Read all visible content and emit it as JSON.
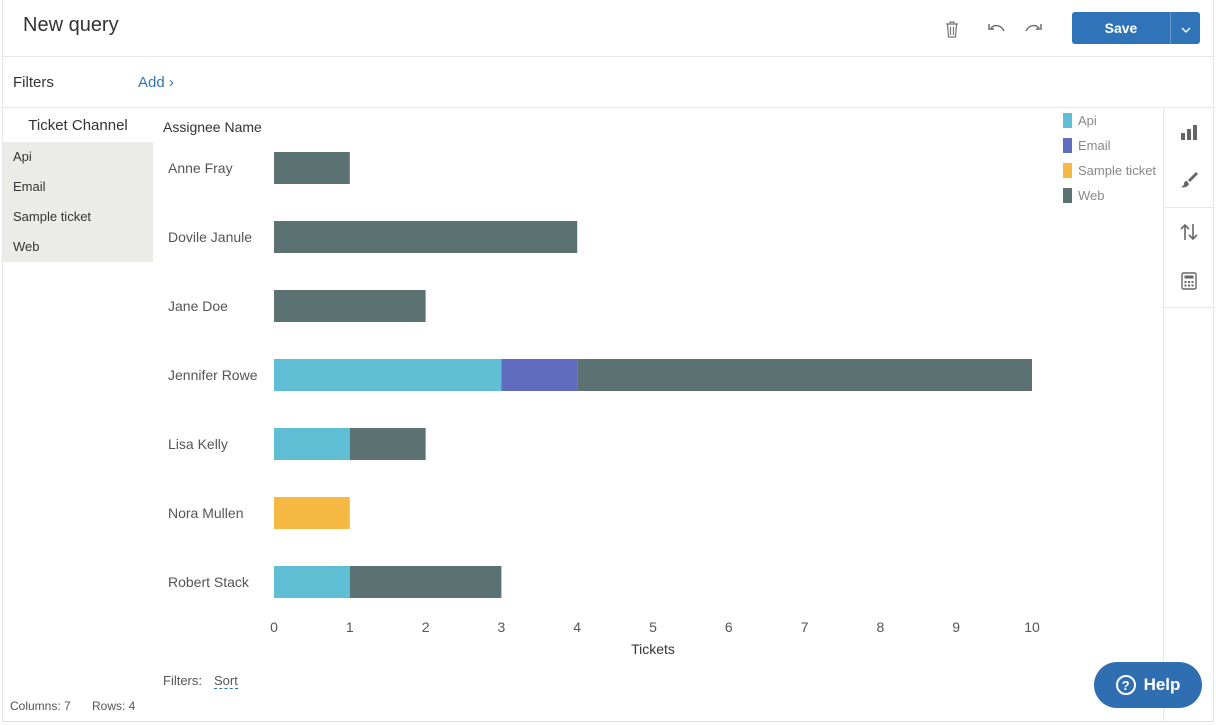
{
  "header": {
    "title": "New query",
    "save_label": "Save"
  },
  "filters_bar": {
    "label": "Filters",
    "add_label": "Add ›"
  },
  "left_panel": {
    "header": "Ticket Channel",
    "items": [
      "Api",
      "Email",
      "Sample ticket",
      "Web"
    ]
  },
  "footer": {
    "filters_label": "Filters:",
    "sort_label": "Sort",
    "columns": "Columns: 7",
    "rows": "Rows: 4"
  },
  "help": {
    "label": "Help"
  },
  "colors": {
    "accent": "#2f73b9",
    "Api": "#5fbdd4",
    "Email": "#5f6cbf",
    "Sample ticket": "#f5b843",
    "Web": "#5c7272"
  },
  "icons": {
    "header": [
      "trash-icon",
      "undo-icon",
      "redo-icon",
      "chevron-down-icon"
    ],
    "right_toolbar": [
      "bar-chart-icon",
      "paintbrush-icon",
      "sort-arrows-icon",
      "calculator-icon"
    ]
  },
  "chart_data": {
    "type": "bar",
    "orientation": "horizontal",
    "stacked": true,
    "ylabel": "Assignee Name",
    "xlabel": "Tickets",
    "categories": [
      "Anne Fray",
      "Dovile Janule",
      "Jane Doe",
      "Jennifer Rowe",
      "Lisa Kelly",
      "Nora Mullen",
      "Robert Stack"
    ],
    "series": [
      {
        "name": "Api",
        "values": [
          0,
          0,
          0,
          3,
          1,
          0,
          1
        ]
      },
      {
        "name": "Email",
        "values": [
          0,
          0,
          0,
          1,
          0,
          0,
          0
        ]
      },
      {
        "name": "Sample ticket",
        "values": [
          0,
          0,
          0,
          0,
          0,
          1,
          0
        ]
      },
      {
        "name": "Web",
        "values": [
          1,
          4,
          2,
          6,
          1,
          0,
          2
        ]
      }
    ],
    "xlim": [
      0,
      10
    ],
    "xticks": [
      "0",
      "1",
      "2",
      "3",
      "4",
      "5",
      "6",
      "7",
      "8",
      "9",
      "10"
    ],
    "grid": false,
    "legend": "top-right"
  }
}
